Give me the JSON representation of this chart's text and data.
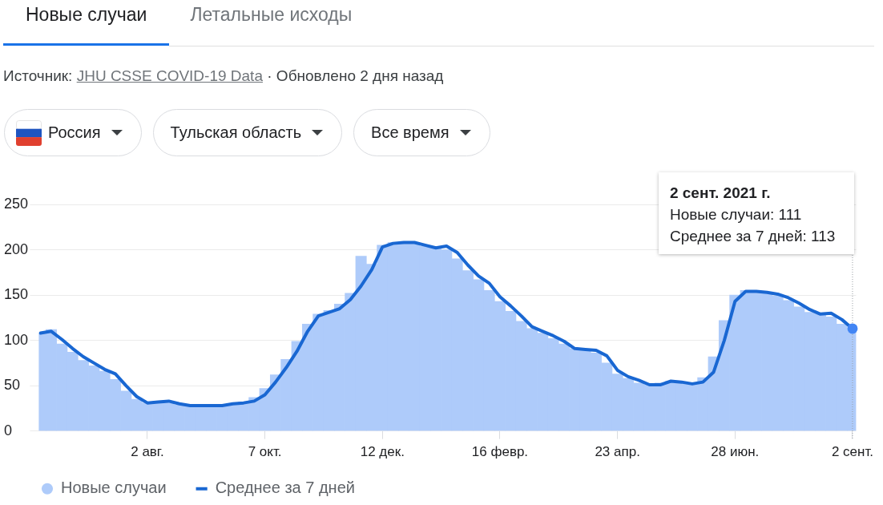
{
  "chart_data": {
    "type": "bar",
    "title": "Новые случаи",
    "annotations": [
      "Летальные исходы",
      "Источник:",
      "JHU CSSE COVID-19 Data",
      "· Обновлено 2 дня назад",
      "Россия",
      "Тульская область",
      "Все время",
      "2 сент. 2021 г.",
      "Новые случаи: 111",
      "Среднее за 7 дней: 113"
    ],
    "x": [
      "2020-06-03",
      "2020-06-09",
      "2020-06-15",
      "2020-06-21",
      "2020-06-27",
      "2020-07-03",
      "2020-07-09",
      "2020-07-15",
      "2020-07-21",
      "2020-07-27",
      "2020-08-02",
      "2020-08-08",
      "2020-08-14",
      "2020-08-20",
      "2020-08-26",
      "2020-09-01",
      "2020-09-07",
      "2020-09-13",
      "2020-09-19",
      "2020-09-25",
      "2020-10-01",
      "2020-10-07",
      "2020-10-13",
      "2020-10-19",
      "2020-10-25",
      "2020-10-31",
      "2020-11-06",
      "2020-11-12",
      "2020-11-18",
      "2020-11-24",
      "2020-11-30",
      "2020-12-06",
      "2020-12-12",
      "2020-12-18",
      "2020-12-24",
      "2020-12-30",
      "2021-01-05",
      "2021-01-11",
      "2021-01-17",
      "2021-01-23",
      "2021-01-29",
      "2021-02-04",
      "2021-02-10",
      "2021-02-16",
      "2021-02-22",
      "2021-02-28",
      "2021-03-06",
      "2021-03-12",
      "2021-03-18",
      "2021-03-24",
      "2021-03-30",
      "2021-04-05",
      "2021-04-11",
      "2021-04-17",
      "2021-04-23",
      "2021-04-29",
      "2021-05-05",
      "2021-05-11",
      "2021-05-17",
      "2021-05-23",
      "2021-05-29",
      "2021-06-04",
      "2021-06-10",
      "2021-06-16",
      "2021-06-22",
      "2021-06-28",
      "2021-07-04",
      "2021-07-10",
      "2021-07-16",
      "2021-07-22",
      "2021-07-28",
      "2021-08-03",
      "2021-08-09",
      "2021-08-15",
      "2021-08-21",
      "2021-08-27",
      "2021-09-02"
    ],
    "series": [
      {
        "name": "Новые случаи",
        "color": "#aecbfa",
        "values": [
          108,
          112,
          96,
          87,
          78,
          72,
          66,
          57,
          44,
          35,
          31,
          33,
          31,
          29,
          28,
          28,
          28,
          29,
          30,
          32,
          37,
          47,
          62,
          79,
          99,
          118,
          129,
          133,
          140,
          152,
          193,
          184,
          205,
          208,
          208,
          207,
          204,
          203,
          200,
          190,
          177,
          167,
          155,
          143,
          132,
          121,
          113,
          108,
          102,
          96,
          91,
          90,
          86,
          75,
          63,
          58,
          53,
          51,
          53,
          55,
          53,
          53,
          59,
          82,
          122,
          150,
          155,
          154,
          152,
          149,
          144,
          137,
          131,
          129,
          126,
          118,
          111
        ]
      },
      {
        "name": "Среднее за 7 дней",
        "type": "line",
        "color": "#1967d2",
        "values": [
          108,
          110,
          101,
          91,
          82,
          75,
          68,
          63,
          50,
          38,
          31,
          32,
          33,
          30,
          28,
          28,
          28,
          28,
          30,
          31,
          33,
          40,
          54,
          70,
          88,
          110,
          127,
          131,
          135,
          145,
          160,
          178,
          203,
          207,
          208,
          208,
          205,
          202,
          204,
          197,
          183,
          171,
          163,
          148,
          138,
          127,
          115,
          110,
          105,
          99,
          91,
          90,
          89,
          83,
          67,
          60,
          56,
          51,
          51,
          55,
          54,
          52,
          54,
          65,
          100,
          143,
          154,
          154,
          153,
          151,
          147,
          141,
          134,
          129,
          130,
          123,
          113
        ]
      }
    ],
    "xlim": [
      "2020-06-02",
      "2021-09-04"
    ],
    "xticks": [
      {
        "value": "2020-08-02",
        "label": "2 авг."
      },
      {
        "value": "2020-10-07",
        "label": "7 окт."
      },
      {
        "value": "2020-12-12",
        "label": "12 дек."
      },
      {
        "value": "2021-02-16",
        "label": "16 февр."
      },
      {
        "value": "2021-04-23",
        "label": "23 апр."
      },
      {
        "value": "2021-06-28",
        "label": "28 июн."
      },
      {
        "value": "2021-09-02",
        "label": "2 сент."
      }
    ],
    "ylim": [
      0,
      250
    ],
    "yticks": [
      0,
      50,
      100,
      150,
      200,
      250
    ],
    "grid": "y",
    "legend": "bottom left",
    "ref_lines": [
      {
        "axis": "x",
        "value": "2021-09-02",
        "color": "#9aa0a6",
        "line_style": "dotted"
      }
    ]
  }
}
